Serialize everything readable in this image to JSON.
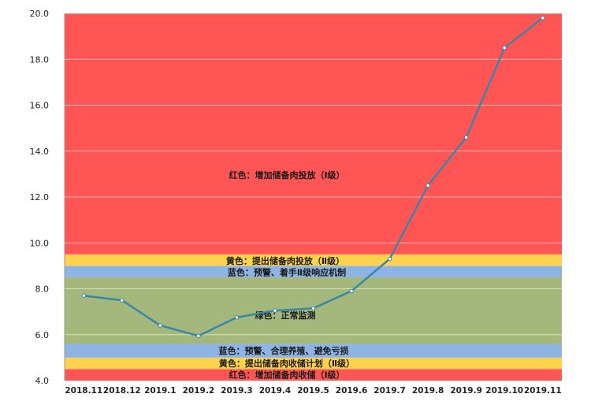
{
  "chart_data": {
    "type": "line",
    "title": "",
    "xlabel": "",
    "ylabel": "",
    "ylim": [
      4.0,
      20.0
    ],
    "yticks": [
      "4.0",
      "6.0",
      "8.0",
      "10.0",
      "12.0",
      "14.0",
      "16.0",
      "18.0",
      "20.0"
    ],
    "categories": [
      "2018.11",
      "2018.12",
      "2019.1",
      "2019.2",
      "2019.3",
      "2019.4",
      "2019.5",
      "2019.6",
      "2019.7",
      "2019.8",
      "2019.9",
      "2019.10",
      "2019.11"
    ],
    "series": [
      {
        "values": [
          7.7,
          7.5,
          6.4,
          5.95,
          6.75,
          7.05,
          7.15,
          7.9,
          9.3,
          12.5,
          14.6,
          18.5,
          19.8
        ],
        "color": "#3a86a8"
      }
    ],
    "grid": true,
    "bands": [
      {
        "from": 4.0,
        "to": 4.5,
        "color": "#ff5555",
        "label": "红色：增加储备肉收储（Ⅰ级）"
      },
      {
        "from": 4.5,
        "to": 5.0,
        "color": "#ffd24d",
        "label": "黄色：提出储备肉收储计划（Ⅱ级）"
      },
      {
        "from": 5.0,
        "to": 5.6,
        "color": "#8db4e2",
        "label": "蓝色：预警、合理养殖、避免亏损"
      },
      {
        "from": 5.6,
        "to": 8.5,
        "color": "#a4b87c",
        "label": "绿色：正常监测"
      },
      {
        "from": 8.5,
        "to": 9.0,
        "color": "#8db4e2",
        "label": "蓝色：预警、着手Ⅱ级响应机制"
      },
      {
        "from": 9.0,
        "to": 9.5,
        "color": "#ffd24d",
        "label": "黄色：提出储备肉投放（Ⅱ级）"
      },
      {
        "from": 9.5,
        "to": 20.0,
        "color": "#ff5555",
        "label": "红色：增加储备肉投放（Ⅰ级）"
      }
    ]
  }
}
